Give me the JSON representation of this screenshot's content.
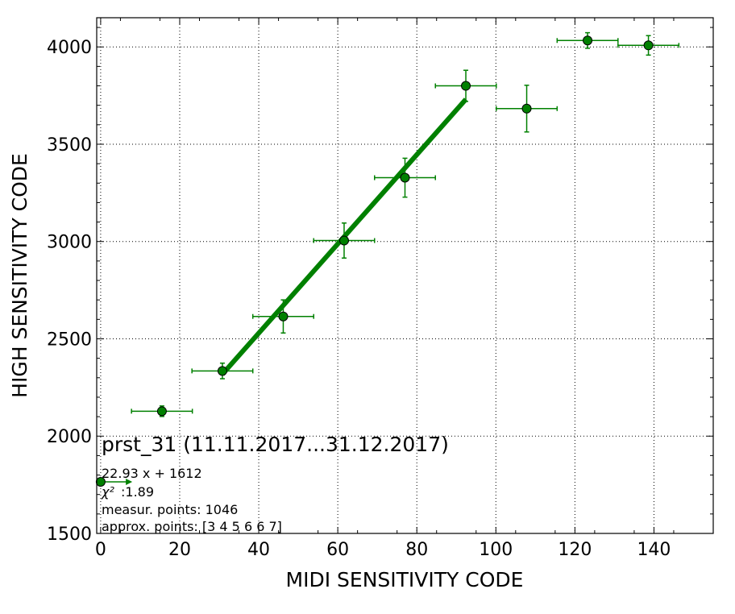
{
  "chart_data": {
    "type": "scatter",
    "xlabel": "MIDI SENSITIVITY CODE",
    "ylabel": "HIGH SENSITIVITY CODE",
    "xlim": [
      -1,
      155
    ],
    "ylim": [
      1500,
      4150
    ],
    "xticks": [
      0,
      20,
      40,
      60,
      80,
      100,
      120,
      140
    ],
    "yticks": [
      1500,
      2000,
      2500,
      3000,
      3500,
      4000
    ],
    "grid": true,
    "colors": {
      "series": "#008000",
      "marker_edge": "#000000"
    },
    "points": [
      {
        "x": 0,
        "y": 1765,
        "xerr": 0,
        "yerr": 0
      },
      {
        "x": 15.5,
        "y": 2128,
        "xerr": 7.7,
        "yerr": 27
      },
      {
        "x": 30.8,
        "y": 2335,
        "xerr": 7.7,
        "yerr": 40
      },
      {
        "x": 46.2,
        "y": 2615,
        "xerr": 7.7,
        "yerr": 85
      },
      {
        "x": 61.6,
        "y": 3005,
        "xerr": 7.7,
        "yerr": 90
      },
      {
        "x": 77,
        "y": 3328,
        "xerr": 7.7,
        "yerr": 100
      },
      {
        "x": 92.4,
        "y": 3800,
        "xerr": 7.7,
        "yerr": 80
      },
      {
        "x": 107.8,
        "y": 3683,
        "xerr": 7.7,
        "yerr": 120
      },
      {
        "x": 123.2,
        "y": 4033,
        "xerr": 7.7,
        "yerr": 40
      },
      {
        "x": 138.6,
        "y": 4008,
        "xerr": 7.7,
        "yerr": 50
      }
    ],
    "fit": {
      "slope": 22.93,
      "intercept": 1612,
      "x_from": 30.8,
      "x_to": 92.4
    },
    "arrow": {
      "x_from": 0,
      "x_to": 8,
      "y": 1765
    },
    "annotation": {
      "title": "prst_31 (11.11.2017...31.12.2017)",
      "equation": "22.93 x + 1612",
      "chi2_symbol": "χ²",
      "chi2_value": ":1.89",
      "measur_points": "measur. points: 1046",
      "approx_points": "approx. points: [3 4 5 6 6 7]"
    }
  }
}
